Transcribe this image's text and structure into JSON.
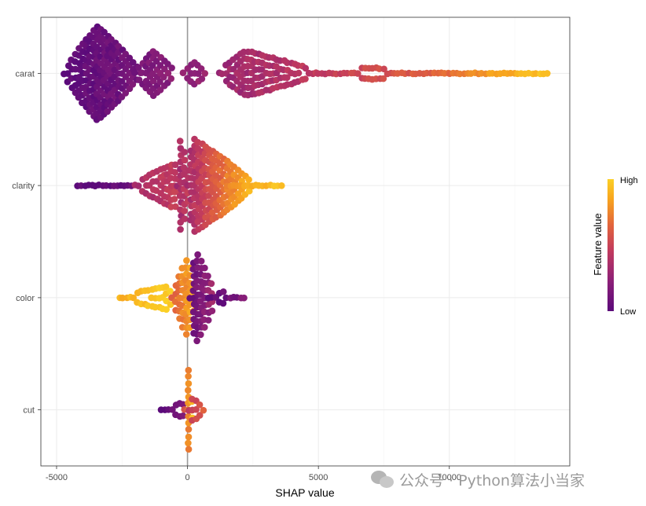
{
  "chart_data": {
    "type": "scatter",
    "subtype": "beeswarm",
    "xlabel": "SHAP value",
    "ylabel": "",
    "xlim": [
      -5600,
      14600
    ],
    "x_ticks": [
      -5000,
      0,
      5000,
      10000
    ],
    "x_tick_labels": [
      "-5000",
      "0",
      "5000",
      "10000"
    ],
    "zero_line": 0,
    "grid": true,
    "categories": [
      "carat",
      "clarity",
      "color",
      "cut"
    ],
    "legend": {
      "title": "Feature value",
      "high_label": "High",
      "low_label": "Low",
      "placement": "right",
      "colors": [
        "#5b0a7a",
        "#8a1f78",
        "#c0395f",
        "#e2643c",
        "#f8a51e",
        "#fbd026"
      ]
    },
    "series": [
      {
        "feature": "carat",
        "clusters": [
          {
            "x_from": -4700,
            "x_to": -1800,
            "peak_x": -3450,
            "max_half_height": 0.42,
            "feature_value_from": 0.0,
            "feature_value_to": 0.12
          },
          {
            "x_from": -2000,
            "x_to": -500,
            "peak_x": -1300,
            "max_half_height": 0.2,
            "feature_value_from": 0.12,
            "feature_value_to": 0.2
          },
          {
            "x_from": -150,
            "x_to": 700,
            "peak_x": 250,
            "max_half_height": 0.1,
            "feature_value_from": 0.2,
            "feature_value_to": 0.24
          },
          {
            "x_from": 1200,
            "x_to": 5000,
            "peak_x": 2200,
            "max_half_height": 0.2,
            "feature_value_from": 0.26,
            "feature_value_to": 0.4
          },
          {
            "x_from": 5000,
            "x_to": 10000,
            "peak_x": 7000,
            "max_half_height": 0.05,
            "feature_value_from": 0.4,
            "feature_value_to": 0.62
          },
          {
            "x_from": 10000,
            "x_to": 13800,
            "peak_x": 11500,
            "max_half_height": 0.04,
            "feature_value_from": 0.62,
            "feature_value_to": 0.95
          }
        ]
      },
      {
        "feature": "clarity",
        "clusters": [
          {
            "x_from": -4200,
            "x_to": -2000,
            "peak_x": -3000,
            "max_half_height": 0.02,
            "feature_value_from": 0.0,
            "feature_value_to": 0.05
          },
          {
            "x_from": -2000,
            "x_to": -300,
            "peak_x": -500,
            "max_half_height": 0.2,
            "feature_value_from": 0.32,
            "feature_value_to": 0.42
          },
          {
            "x_from": -400,
            "x_to": 100,
            "peak_x": -250,
            "max_half_height": 0.42,
            "feature_value_from": 0.3,
            "feature_value_to": 0.4
          },
          {
            "x_from": 0,
            "x_to": 2500,
            "peak_x": 200,
            "max_half_height": 0.42,
            "feature_value_from": 0.3,
            "feature_value_to": 0.9
          },
          {
            "x_from": 1500,
            "x_to": 3600,
            "peak_x": 2500,
            "max_half_height": 0.03,
            "feature_value_from": 0.7,
            "feature_value_to": 0.95
          }
        ]
      },
      {
        "feature": "color",
        "clusters": [
          {
            "x_from": -2600,
            "x_to": -500,
            "peak_x": -800,
            "max_half_height": 0.1,
            "feature_value_from": 0.85,
            "feature_value_to": 1.0
          },
          {
            "x_from": -600,
            "x_to": 300,
            "peak_x": 0,
            "max_half_height": 0.35,
            "feature_value_from": 0.55,
            "feature_value_to": 0.85
          },
          {
            "x_from": 100,
            "x_to": 1100,
            "peak_x": 300,
            "max_half_height": 0.42,
            "feature_value_from": 0.05,
            "feature_value_to": 0.3
          },
          {
            "x_from": 800,
            "x_to": 2200,
            "peak_x": 1300,
            "max_half_height": 0.05,
            "feature_value_from": 0.0,
            "feature_value_to": 0.15
          }
        ]
      },
      {
        "feature": "cut",
        "clusters": [
          {
            "x_from": -1000,
            "x_to": -50,
            "peak_x": -200,
            "max_half_height": 0.06,
            "feature_value_from": 0.0,
            "feature_value_to": 0.15
          },
          {
            "x_from": -100,
            "x_to": 200,
            "peak_x": 0,
            "max_half_height": 0.42,
            "feature_value_from": 0.5,
            "feature_value_to": 0.95
          },
          {
            "x_from": 50,
            "x_to": 650,
            "peak_x": 200,
            "max_half_height": 0.1,
            "feature_value_from": 0.4,
            "feature_value_to": 0.6
          }
        ]
      }
    ]
  },
  "watermark": {
    "text": "公众号 · Python算法小当家"
  }
}
